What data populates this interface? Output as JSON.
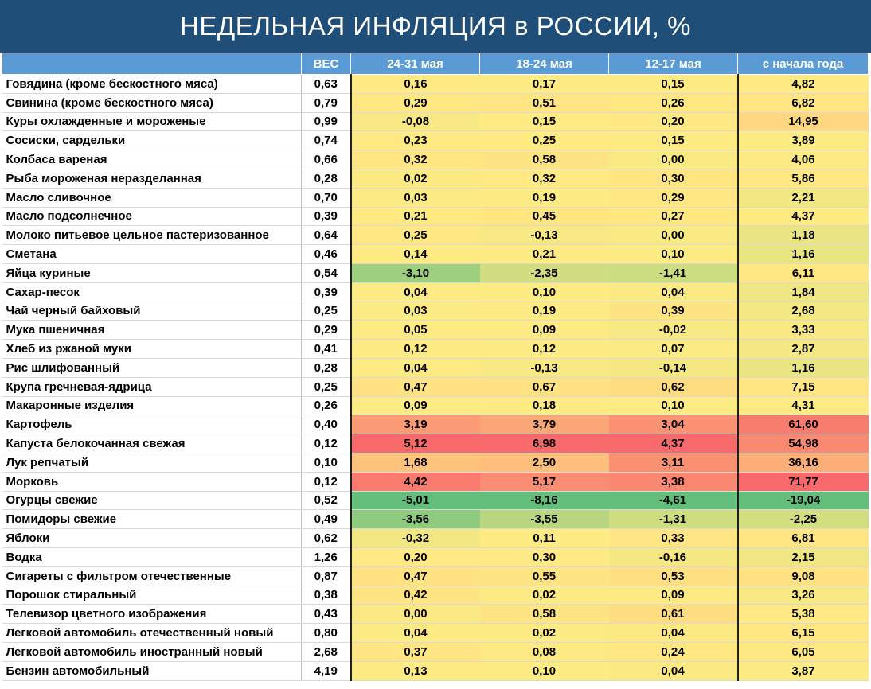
{
  "title": "НЕДЕЛЬНАЯ ИНФЛЯЦИЯ в РОССИИ, %",
  "colors": {
    "header_bg": "#1f4e79",
    "column_header_bg": "#5b9bd5",
    "scale_low": "#63be7b",
    "scale_mid": "#ffeb84",
    "scale_high": "#f8696b"
  },
  "chart_data": {
    "type": "table",
    "columns": [
      "",
      "ВЕС",
      "24-31 мая",
      "18-24 мая",
      "12-17 мая",
      "с начала года"
    ],
    "rows": [
      [
        "Говядина (кроме бескостного мяса)",
        "0,63",
        "0,16",
        "0,17",
        "0,15",
        "4,82"
      ],
      [
        "Свинина (кроме бескостного мяса)",
        "0,79",
        "0,29",
        "0,51",
        "0,26",
        "6,82"
      ],
      [
        "Куры охлажденные и мороженые",
        "0,99",
        "-0,08",
        "0,15",
        "0,20",
        "14,95"
      ],
      [
        "Сосиски, сардельки",
        "0,74",
        "0,23",
        "0,25",
        "0,15",
        "3,89"
      ],
      [
        "Колбаса вареная",
        "0,66",
        "0,32",
        "0,58",
        "0,00",
        "4,06"
      ],
      [
        "Рыба мороженая неразделанная",
        "0,28",
        "0,02",
        "0,32",
        "0,30",
        "5,86"
      ],
      [
        "Масло сливочное",
        "0,70",
        "0,03",
        "0,19",
        "0,29",
        "2,21"
      ],
      [
        "Масло подсолнечное",
        "0,39",
        "0,21",
        "0,45",
        "0,27",
        "4,37"
      ],
      [
        "Молоко питьевое цельное пастеризованное",
        "0,64",
        "0,25",
        "-0,13",
        "0,00",
        "1,18"
      ],
      [
        "Сметана",
        "0,46",
        "0,14",
        "0,21",
        "0,10",
        "1,16"
      ],
      [
        "Яйца куриные",
        "0,54",
        "-3,10",
        "-2,35",
        "-1,41",
        "6,11"
      ],
      [
        "Сахар-песок",
        "0,39",
        "0,04",
        "0,10",
        "0,04",
        "1,84"
      ],
      [
        "Чай черный байховый",
        "0,25",
        "0,03",
        "0,19",
        "0,39",
        "2,68"
      ],
      [
        "Мука пшеничная",
        "0,29",
        "0,05",
        "0,09",
        "-0,02",
        "3,33"
      ],
      [
        "Хлеб из ржаной муки",
        "0,41",
        "0,12",
        "0,12",
        "0,07",
        "2,87"
      ],
      [
        "Рис шлифованный",
        "0,28",
        "0,04",
        "-0,13",
        "-0,14",
        "1,16"
      ],
      [
        "Крупа гречневая-ядрица",
        "0,25",
        "0,47",
        "0,67",
        "0,62",
        "7,15"
      ],
      [
        "Макаронные изделия",
        "0,26",
        "0,09",
        "0,18",
        "0,10",
        "4,31"
      ],
      [
        "Картофель",
        "0,40",
        "3,19",
        "3,79",
        "3,04",
        "61,60"
      ],
      [
        "Капуста белокочанная свежая",
        "0,12",
        "5,12",
        "6,98",
        "4,37",
        "54,98"
      ],
      [
        "Лук репчатый",
        "0,10",
        "1,68",
        "2,50",
        "3,11",
        "36,16"
      ],
      [
        "Морковь",
        "0,12",
        "4,42",
        "5,17",
        "3,38",
        "71,77"
      ],
      [
        "Огурцы свежие",
        "0,52",
        "-5,01",
        "-8,16",
        "-4,61",
        "-19,04"
      ],
      [
        "Помидоры свежие",
        "0,49",
        "-3,56",
        "-3,55",
        "-1,31",
        "-2,25"
      ],
      [
        "Яблоки",
        "0,62",
        "-0,32",
        "0,11",
        "0,33",
        "6,81"
      ],
      [
        "Водка",
        "1,26",
        "0,20",
        "0,30",
        "-0,16",
        "2,15"
      ],
      [
        "Сигареты с фильтром отечественные",
        "0,87",
        "0,47",
        "0,55",
        "0,53",
        "9,08"
      ],
      [
        "Порошок стиральный",
        "0,38",
        "0,42",
        "0,02",
        "0,09",
        "3,26"
      ],
      [
        "Телевизор цветного изображения",
        "0,43",
        "0,00",
        "0,58",
        "0,61",
        "5,38"
      ],
      [
        "Легковой автомобиль отечественный новый",
        "0,80",
        "0,04",
        "0,02",
        "0,04",
        "6,15"
      ],
      [
        "Легковой автомобиль иностранный новый",
        "2,68",
        "0,37",
        "0,08",
        "0,24",
        "6,05"
      ],
      [
        "Бензин автомобильный",
        "4,19",
        "0,13",
        "0,10",
        "0,04",
        "3,87"
      ]
    ]
  }
}
